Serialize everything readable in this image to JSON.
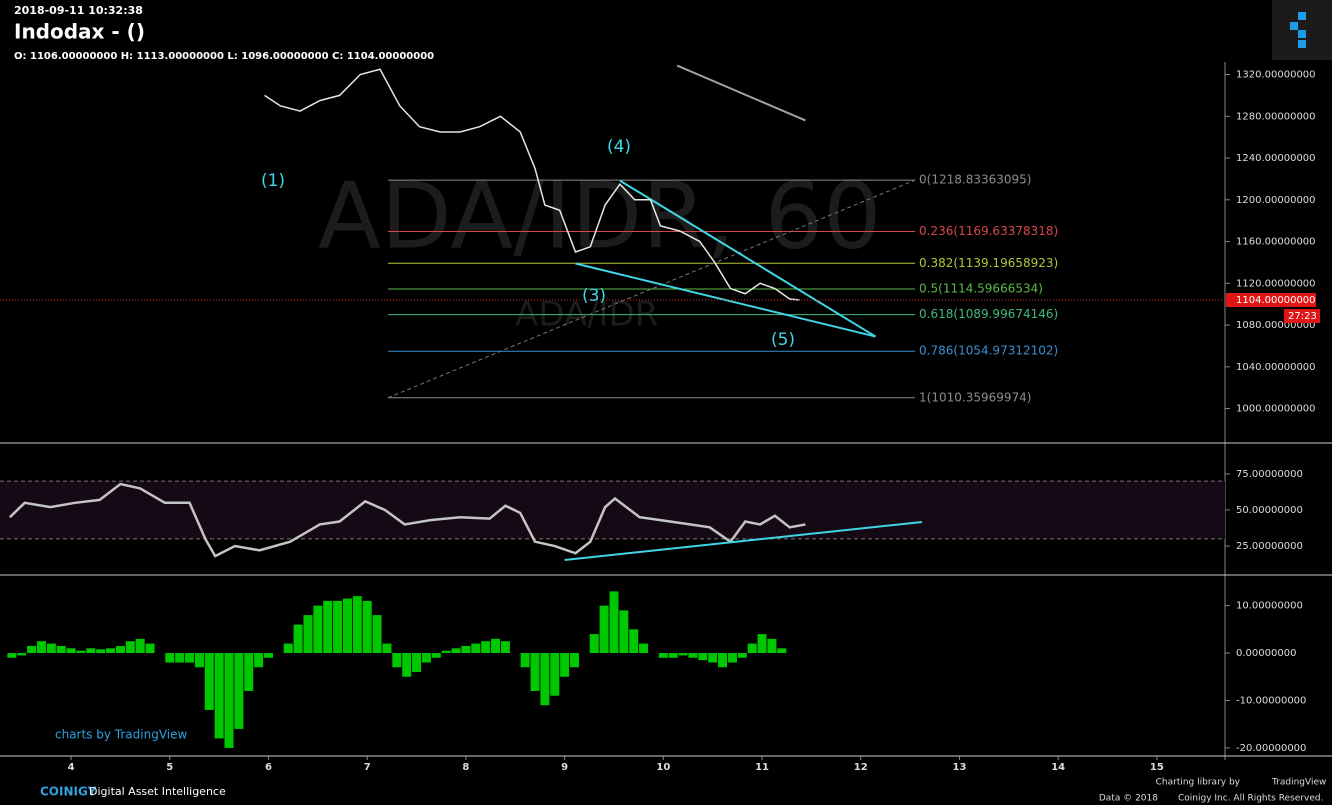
{
  "header": {
    "datetime": "2018-09-11 10:32:38",
    "title": "Indodax - ()",
    "ohlc": "O: 1106.00000000 H: 1113.00000000 L: 1096.00000000 C: 1104.00000000"
  },
  "watermark": {
    "main": "ADA/IDR, 60",
    "sub": "ADA/IDR"
  },
  "footer": {
    "tv": "charts by TradingView",
    "brand": "COINIGY",
    "tagline": "Digital Asset Intelligence",
    "lib": "Charting library by",
    "lib_name": "TradingView",
    "data": "Data © 2018",
    "rights": "Coinigy Inc. All Rights Reserved."
  },
  "chart_data": [
    {
      "type": "line",
      "color": "#e6e6e6",
      "x": [
        5.96,
        6.12,
        6.32,
        6.52,
        6.72,
        6.93,
        7.13,
        7.33,
        7.53,
        7.74,
        7.94,
        8.14,
        8.35,
        8.55,
        8.7,
        8.8,
        8.95,
        9.11,
        9.26,
        9.41,
        9.56,
        9.71,
        9.87,
        9.97,
        10.17,
        10.37,
        10.52,
        10.68,
        10.83,
        10.98,
        11.13,
        11.28,
        11.38
      ],
      "values": [
        1300,
        1290,
        1285,
        1295,
        1300,
        1320,
        1325,
        1290,
        1270,
        1265,
        1265,
        1270,
        1280,
        1265,
        1230,
        1195,
        1190,
        1150,
        1155,
        1195,
        1215,
        1200,
        1200,
        1175,
        1170,
        1160,
        1140,
        1115,
        1110,
        1120,
        1115,
        1105,
        1104
      ],
      "xlim": [
        3.28,
        15.69
      ],
      "xticks": [
        4,
        5,
        6,
        7,
        8,
        9,
        10,
        11,
        12,
        13,
        14,
        15
      ],
      "ylim": [
        968,
        1332
      ],
      "yticks": [
        {
          "value": 1000,
          "label": "1000.00000000"
        },
        {
          "value": 1040,
          "label": "1040.00000000"
        },
        {
          "value": 1080,
          "label": "1080.00000000"
        },
        {
          "value": 1120,
          "label": "1120.00000000"
        },
        {
          "value": 1160,
          "label": "1160.00000000"
        },
        {
          "value": 1200,
          "label": "1200.00000000"
        },
        {
          "value": 1240,
          "label": "1240.00000000"
        },
        {
          "value": 1280,
          "label": "1280.00000000"
        },
        {
          "value": 1320,
          "label": "1320.00000000"
        }
      ],
      "grid": false,
      "fib_levels": [
        {
          "value": 1218.83363095,
          "label": "0(1218.83363095)",
          "color": "#8c8c8c"
        },
        {
          "value": 1169.63378318,
          "label": "0.236(1169.63378318)",
          "color": "#d84848"
        },
        {
          "value": 1139.19658923,
          "label": "0.382(1139.19658923)",
          "color": "#b4c63c"
        },
        {
          "value": 1114.59666534,
          "label": "0.5(1114.59666534)",
          "color": "#5cb84a"
        },
        {
          "value": 1089.99674146,
          "label": "0.618(1089.99674146)",
          "color": "#40bb7a"
        },
        {
          "value": 1054.97312102,
          "label": "0.786(1054.97312102)",
          "color": "#3b8fd2"
        },
        {
          "value": 1010.35969974,
          "label": "1(1010.35969974)",
          "color": "#8c8c8c"
        }
      ],
      "fib_x": [
        7.21,
        12.55
      ],
      "trendlines": [
        {
          "x": [
            9.56,
            12.15
          ],
          "y": [
            1218.4,
            1069
          ],
          "color": "#3fd6e6"
        },
        {
          "x": [
            9.11,
            12.15
          ],
          "y": [
            1139,
            1069
          ],
          "color": "#3fd6e6"
        },
        {
          "x": [
            10.14,
            11.44
          ],
          "y": [
            1328.6,
            1276
          ],
          "color": "#a0a0a0"
        }
      ],
      "annotations": [
        "(1)",
        "(3)",
        "(4)",
        "(5)"
      ],
      "last_price": {
        "value": 1104,
        "label": "1104.00000000"
      },
      "countdown": "27:23"
    },
    {
      "type": "line",
      "color": "#c4c4c4",
      "x": [
        3.38,
        3.53,
        3.79,
        4.04,
        4.29,
        4.5,
        4.7,
        4.95,
        5.2,
        5.36,
        5.46,
        5.66,
        5.91,
        6.22,
        6.52,
        6.72,
        6.98,
        7.18,
        7.38,
        7.64,
        7.94,
        8.24,
        8.4,
        8.55,
        8.7,
        8.9,
        9.11,
        9.26,
        9.41,
        9.51,
        9.76,
        9.97,
        10.27,
        10.47,
        10.68,
        10.83,
        10.98,
        11.13,
        11.28,
        11.44
      ],
      "values": [
        45,
        55,
        52,
        55,
        57,
        68,
        65,
        55,
        55,
        30,
        18,
        25,
        22,
        28,
        40,
        42,
        56,
        50,
        40,
        43,
        45,
        44,
        53,
        48,
        28,
        25,
        20,
        28,
        52,
        58,
        45,
        43,
        40,
        38,
        28,
        42,
        40,
        46,
        38,
        40
      ],
      "ylim": [
        5.6,
        95.8
      ],
      "yticks": [
        {
          "value": 25,
          "label": "25.00000000"
        },
        {
          "value": 50,
          "label": "50.00000000"
        },
        {
          "value": 75,
          "label": "75.00000000"
        }
      ],
      "bands": [
        30,
        70
      ],
      "trendline": {
        "x": [
          9.0,
          12.62
        ],
        "y": [
          15.3,
          41.7
        ],
        "color": "#3fd6e6"
      }
    },
    {
      "type": "bar",
      "color": "#00c800",
      "x": [
        3.4,
        3.5,
        3.6,
        3.7,
        3.8,
        3.9,
        4.0,
        4.1,
        4.2,
        4.3,
        4.4,
        4.5,
        4.6,
        4.7,
        4.8,
        4.9,
        5.0,
        5.1,
        5.2,
        5.3,
        5.4,
        5.5,
        5.6,
        5.7,
        5.8,
        5.9,
        6.0,
        6.1,
        6.2,
        6.3,
        6.4,
        6.5,
        6.6,
        6.7,
        6.8,
        6.9,
        7.0,
        7.1,
        7.2,
        7.3,
        7.4,
        7.5,
        7.6,
        7.7,
        7.8,
        7.9,
        8.0,
        8.1,
        8.2,
        8.3,
        8.4,
        8.5,
        8.6,
        8.7,
        8.8,
        8.9,
        9.0,
        9.1,
        9.2,
        9.3,
        9.4,
        9.5,
        9.6,
        9.7,
        9.8,
        9.9,
        10.0,
        10.1,
        10.2,
        10.3,
        10.4,
        10.5,
        10.6,
        10.7,
        10.8,
        10.9,
        11.0,
        11.1,
        11.2,
        11.3
      ],
      "values": [
        -1,
        -0.5,
        1.5,
        2.5,
        2,
        1.5,
        1,
        0.5,
        1,
        0.8,
        1,
        1.5,
        2.5,
        3,
        2,
        0,
        -2,
        -2,
        -2,
        -3,
        -12,
        -18,
        -20,
        -16,
        -8,
        -3,
        -1,
        0,
        2,
        6,
        8,
        10,
        11,
        11,
        11.5,
        12,
        11,
        8,
        2,
        -3,
        -5,
        -4,
        -2,
        -1,
        0.5,
        1,
        1.5,
        2,
        2.5,
        3,
        2.5,
        0,
        -3,
        -8,
        -11,
        -9,
        -5,
        -3,
        0,
        4,
        10,
        13,
        9,
        5,
        2,
        0,
        -1,
        -1,
        -0.5,
        -1,
        -1.5,
        -2,
        -3,
        -2,
        -1,
        2,
        4,
        3,
        1,
        0
      ],
      "ylim": [
        -21.5,
        16.25
      ],
      "yticks": [
        {
          "value": -20,
          "label": "-20.00000000"
        },
        {
          "value": -10,
          "label": "-10.00000000"
        },
        {
          "value": 0,
          "label": "0.00000000"
        },
        {
          "value": 10,
          "label": "10.00000000"
        }
      ]
    }
  ]
}
